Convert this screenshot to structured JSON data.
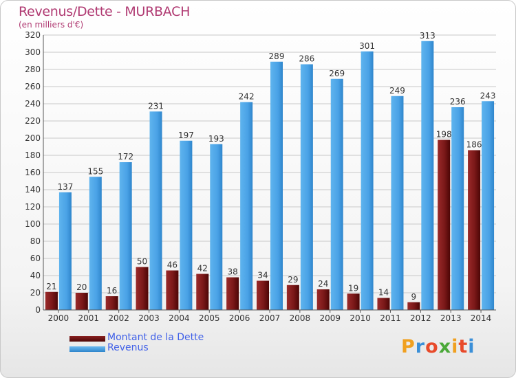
{
  "header": {
    "title": "Revenus/Dette - MURBACH",
    "subtitle": "(en milliers d'€)"
  },
  "colors": {
    "dette": "#7a1818",
    "revenus": "#4aa2e6",
    "title": "#b03a72",
    "legend_text": "#4060e8"
  },
  "legend": [
    {
      "label": "Montant de la Dette",
      "color": "#5c0f0f"
    },
    {
      "label": "Revenus",
      "color": "#4aa2e6"
    }
  ],
  "logo": {
    "text": "Proxiti"
  },
  "chart_data": {
    "type": "bar",
    "title": "Revenus/Dette - MURBACH",
    "subtitle": "(en milliers d'€)",
    "categories": [
      "2000",
      "2001",
      "2002",
      "2003",
      "2004",
      "2005",
      "2006",
      "2007",
      "2008",
      "2009",
      "2010",
      "2011",
      "2012",
      "2013",
      "2014"
    ],
    "series": [
      {
        "name": "Montant de la Dette",
        "values": [
          21,
          20,
          16,
          50,
          46,
          42,
          38,
          34,
          29,
          24,
          19,
          14,
          9,
          198,
          186
        ]
      },
      {
        "name": "Revenus",
        "values": [
          137,
          155,
          172,
          231,
          197,
          193,
          242,
          289,
          286,
          269,
          301,
          249,
          313,
          236,
          243
        ]
      }
    ],
    "ylim": [
      0,
      320
    ],
    "yticks": [
      0,
      20,
      40,
      60,
      80,
      100,
      120,
      140,
      160,
      180,
      200,
      220,
      240,
      260,
      280,
      300,
      320
    ],
    "grid": true,
    "legend_position": "bottom-left"
  }
}
